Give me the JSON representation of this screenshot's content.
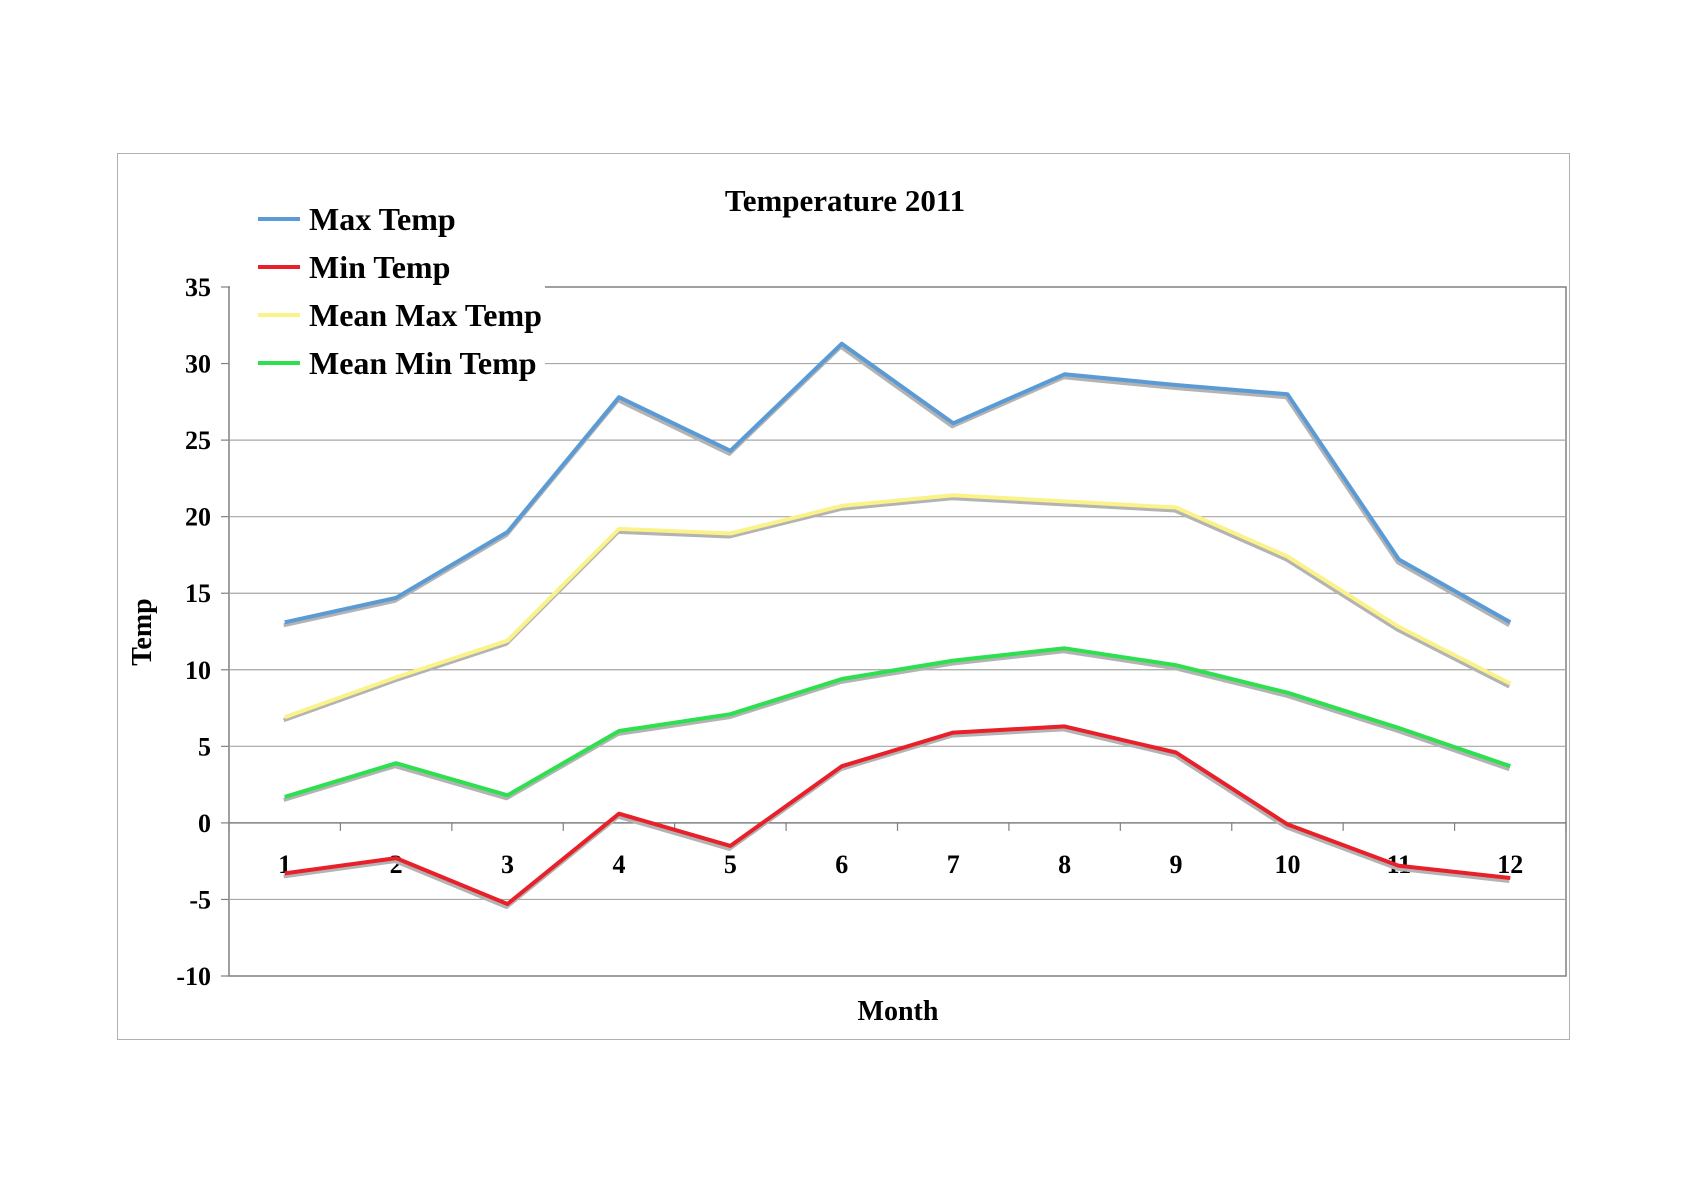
{
  "chart_data": {
    "type": "line",
    "title": "Temperature 2011",
    "xlabel": "Month",
    "ylabel": "Temp",
    "categories": [
      "1",
      "2",
      "3",
      "4",
      "5",
      "6",
      "7",
      "8",
      "9",
      "10",
      "11",
      "12"
    ],
    "ylim": [
      -10,
      35
    ],
    "yticks": [
      "35",
      "30",
      "25",
      "20",
      "15",
      "10",
      "5",
      "0",
      "-5",
      "-10"
    ],
    "grid": true,
    "legend_position": "top-left",
    "series": [
      {
        "name": "Max Temp",
        "color": "#5b9bd5",
        "values": [
          13.1,
          14.7,
          19.0,
          27.8,
          24.3,
          31.3,
          26.1,
          29.3,
          28.6,
          28.0,
          17.2,
          13.1
        ]
      },
      {
        "name": "Min Temp",
        "color": "#e8202a",
        "values": [
          -3.3,
          -2.3,
          -5.3,
          0.6,
          -1.5,
          3.7,
          5.9,
          6.3,
          4.6,
          -0.1,
          -2.8,
          -3.6
        ]
      },
      {
        "name": "Mean Max Temp",
        "color": "#fbf28a",
        "values": [
          6.9,
          9.5,
          11.9,
          19.2,
          18.9,
          20.7,
          21.4,
          21.0,
          20.6,
          17.4,
          12.8,
          9.1
        ]
      },
      {
        "name": "Mean Min Temp",
        "color": "#2ee04f",
        "values": [
          1.7,
          3.9,
          1.8,
          6.0,
          7.1,
          9.4,
          10.6,
          11.4,
          10.3,
          8.5,
          6.2,
          3.7
        ]
      }
    ]
  }
}
